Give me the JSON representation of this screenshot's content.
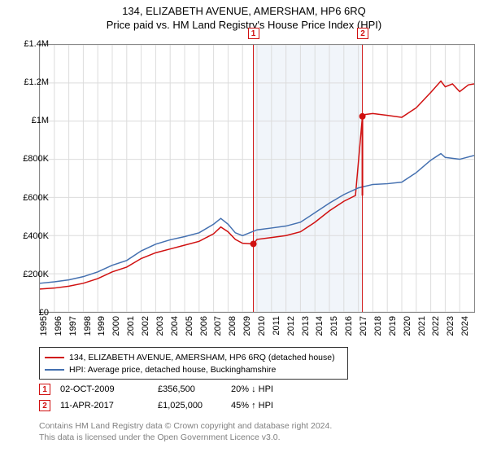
{
  "title": {
    "main": "134, ELIZABETH AVENUE, AMERSHAM, HP6 6RQ",
    "sub": "Price paid vs. HM Land Registry's House Price Index (HPI)"
  },
  "chart": {
    "type": "line",
    "background_color": "#ffffff",
    "grid_color": "#dcdcdc",
    "border_color": "#888888",
    "shade_color": "#e8eef7",
    "font_family": "Arial",
    "label_fontsize": 11,
    "ylim": [
      0,
      1400000
    ],
    "ytick_step": 200000,
    "y_labels": [
      "£0",
      "£200K",
      "£400K",
      "£600K",
      "£800K",
      "£1M",
      "£1.2M",
      "£1.4M"
    ],
    "xlim": [
      1995,
      2025
    ],
    "x_labels": [
      "1995",
      "1996",
      "1997",
      "1998",
      "1999",
      "2000",
      "2001",
      "2002",
      "2003",
      "2004",
      "2005",
      "2006",
      "2007",
      "2008",
      "2009",
      "2010",
      "2011",
      "2012",
      "2013",
      "2014",
      "2015",
      "2016",
      "2017",
      "2018",
      "2019",
      "2020",
      "2021",
      "2022",
      "2023",
      "2024"
    ],
    "series": [
      {
        "name": "property",
        "label": "134, ELIZABETH AVENUE, AMERSHAM, HP6 6RQ (detached house)",
        "color": "#d01010",
        "line_width": 1.5,
        "data": [
          [
            1995,
            120000
          ],
          [
            1996,
            125000
          ],
          [
            1997,
            135000
          ],
          [
            1998,
            150000
          ],
          [
            1999,
            175000
          ],
          [
            2000,
            210000
          ],
          [
            2001,
            235000
          ],
          [
            2002,
            280000
          ],
          [
            2003,
            310000
          ],
          [
            2004,
            330000
          ],
          [
            2005,
            350000
          ],
          [
            2006,
            370000
          ],
          [
            2007,
            410000
          ],
          [
            2007.5,
            445000
          ],
          [
            2008,
            420000
          ],
          [
            2008.5,
            380000
          ],
          [
            2009,
            360000
          ],
          [
            2009.75,
            356500
          ],
          [
            2010,
            380000
          ],
          [
            2011,
            390000
          ],
          [
            2012,
            400000
          ],
          [
            2013,
            420000
          ],
          [
            2014,
            470000
          ],
          [
            2015,
            530000
          ],
          [
            2016,
            580000
          ],
          [
            2016.8,
            610000
          ],
          [
            2017.28,
            1025000
          ],
          [
            2017.5,
            1035000
          ],
          [
            2018,
            1040000
          ],
          [
            2019,
            1030000
          ],
          [
            2020,
            1020000
          ],
          [
            2021,
            1070000
          ],
          [
            2022,
            1150000
          ],
          [
            2022.7,
            1210000
          ],
          [
            2023,
            1180000
          ],
          [
            2023.5,
            1195000
          ],
          [
            2024,
            1155000
          ],
          [
            2024.6,
            1190000
          ],
          [
            2025,
            1195000
          ]
        ]
      },
      {
        "name": "hpi",
        "label": "HPI: Average price, detached house, Buckinghamshire",
        "color": "#4470b0",
        "line_width": 1.5,
        "data": [
          [
            1995,
            150000
          ],
          [
            1996,
            158000
          ],
          [
            1997,
            168000
          ],
          [
            1998,
            185000
          ],
          [
            1999,
            210000
          ],
          [
            2000,
            245000
          ],
          [
            2001,
            270000
          ],
          [
            2002,
            320000
          ],
          [
            2003,
            355000
          ],
          [
            2004,
            378000
          ],
          [
            2005,
            395000
          ],
          [
            2006,
            415000
          ],
          [
            2007,
            460000
          ],
          [
            2007.5,
            490000
          ],
          [
            2008,
            460000
          ],
          [
            2008.5,
            415000
          ],
          [
            2009,
            400000
          ],
          [
            2010,
            430000
          ],
          [
            2011,
            440000
          ],
          [
            2012,
            450000
          ],
          [
            2013,
            470000
          ],
          [
            2014,
            520000
          ],
          [
            2015,
            570000
          ],
          [
            2016,
            615000
          ],
          [
            2017,
            650000
          ],
          [
            2018,
            668000
          ],
          [
            2019,
            672000
          ],
          [
            2020,
            680000
          ],
          [
            2021,
            730000
          ],
          [
            2022,
            795000
          ],
          [
            2022.7,
            830000
          ],
          [
            2023,
            810000
          ],
          [
            2024,
            800000
          ],
          [
            2025,
            820000
          ]
        ]
      }
    ],
    "transactions": [
      {
        "id": "1",
        "date_x": 2009.75,
        "price": 356500,
        "date_label": "02-OCT-2009",
        "price_label": "£356,500",
        "pct_label": "20%  ↓  HPI"
      },
      {
        "id": "2",
        "date_x": 2017.28,
        "price": 1025000,
        "date_label": "11-APR-2017",
        "price_label": "£1,025,000",
        "pct_label": "45%  ↑  HPI"
      }
    ],
    "shade_range": [
      2009.75,
      2017.28
    ],
    "marker_color": "#d01010"
  },
  "footer": {
    "line1": "Contains HM Land Registry data © Crown copyright and database right 2024.",
    "line2": "This data is licensed under the Open Government Licence v3.0."
  }
}
